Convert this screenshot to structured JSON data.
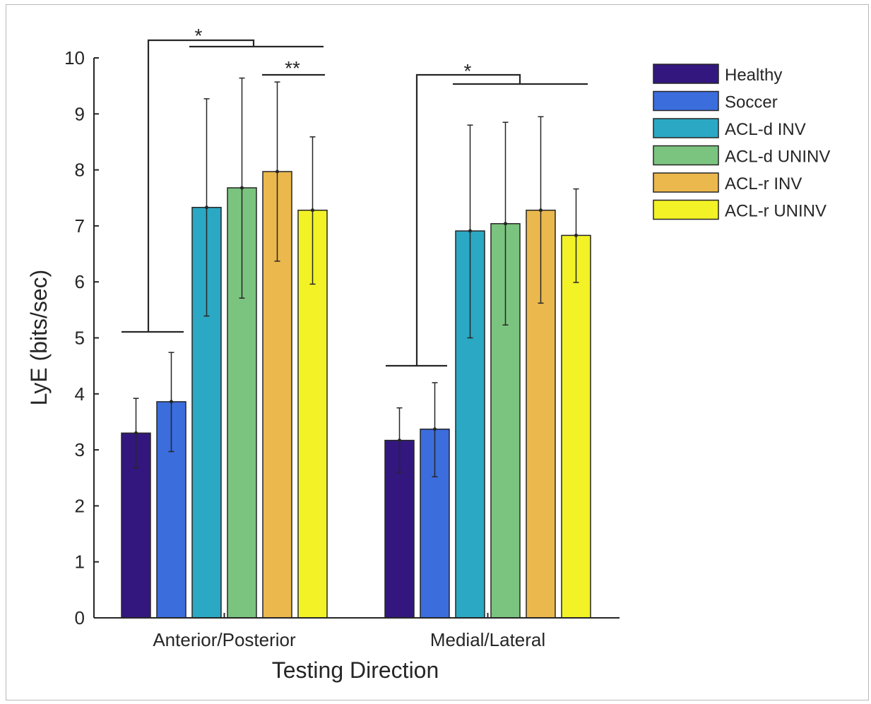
{
  "chart_data": {
    "type": "bar",
    "title": "",
    "xlabel": "Testing Direction",
    "ylabel": "LyE (bits/sec)",
    "ylim": [
      0,
      10
    ],
    "yticks": [
      0,
      1,
      2,
      3,
      4,
      5,
      6,
      7,
      8,
      9,
      10
    ],
    "categories": [
      "Anterior/Posterior",
      "Medial/Lateral"
    ],
    "legend_position": "top-right",
    "grid": false,
    "series": [
      {
        "name": "Healthy",
        "color": "#33177f",
        "values": [
          3.3,
          3.17
        ],
        "error_low": [
          2.68,
          2.6
        ],
        "error_high": [
          3.92,
          3.75
        ]
      },
      {
        "name": "Soccer",
        "color": "#3b6ddd",
        "values": [
          3.86,
          3.37
        ],
        "error_low": [
          2.97,
          2.52
        ],
        "error_high": [
          4.74,
          4.2
        ]
      },
      {
        "name": "ACL-d INV",
        "color": "#2ba8c3",
        "values": [
          7.33,
          6.91
        ],
        "error_low": [
          5.39,
          5.0
        ],
        "error_high": [
          9.27,
          8.8
        ]
      },
      {
        "name": "ACL-d UNINV",
        "color": "#7bc47f",
        "values": [
          7.68,
          7.04
        ],
        "error_low": [
          5.71,
          5.23
        ],
        "error_high": [
          9.64,
          8.85
        ]
      },
      {
        "name": "ACL-r INV",
        "color": "#ebb84d",
        "values": [
          7.97,
          7.28
        ],
        "error_low": [
          6.37,
          5.62
        ],
        "error_high": [
          9.57,
          8.95
        ]
      },
      {
        "name": "ACL-r UNINV",
        "color": "#f2f226",
        "values": [
          7.28,
          6.83
        ],
        "error_low": [
          5.96,
          5.99
        ],
        "error_high": [
          8.59,
          7.66
        ]
      }
    ],
    "significance": [
      {
        "label": "*",
        "category": "Anterior/Posterior",
        "comparison": "Healthy & Soccer vs ACL groups"
      },
      {
        "label": "**",
        "category": "Anterior/Posterior",
        "comparison": "ACL-r INV vs ACL-r UNINV"
      },
      {
        "label": "*",
        "category": "Medial/Lateral",
        "comparison": "Healthy & Soccer vs ACL groups"
      }
    ]
  }
}
